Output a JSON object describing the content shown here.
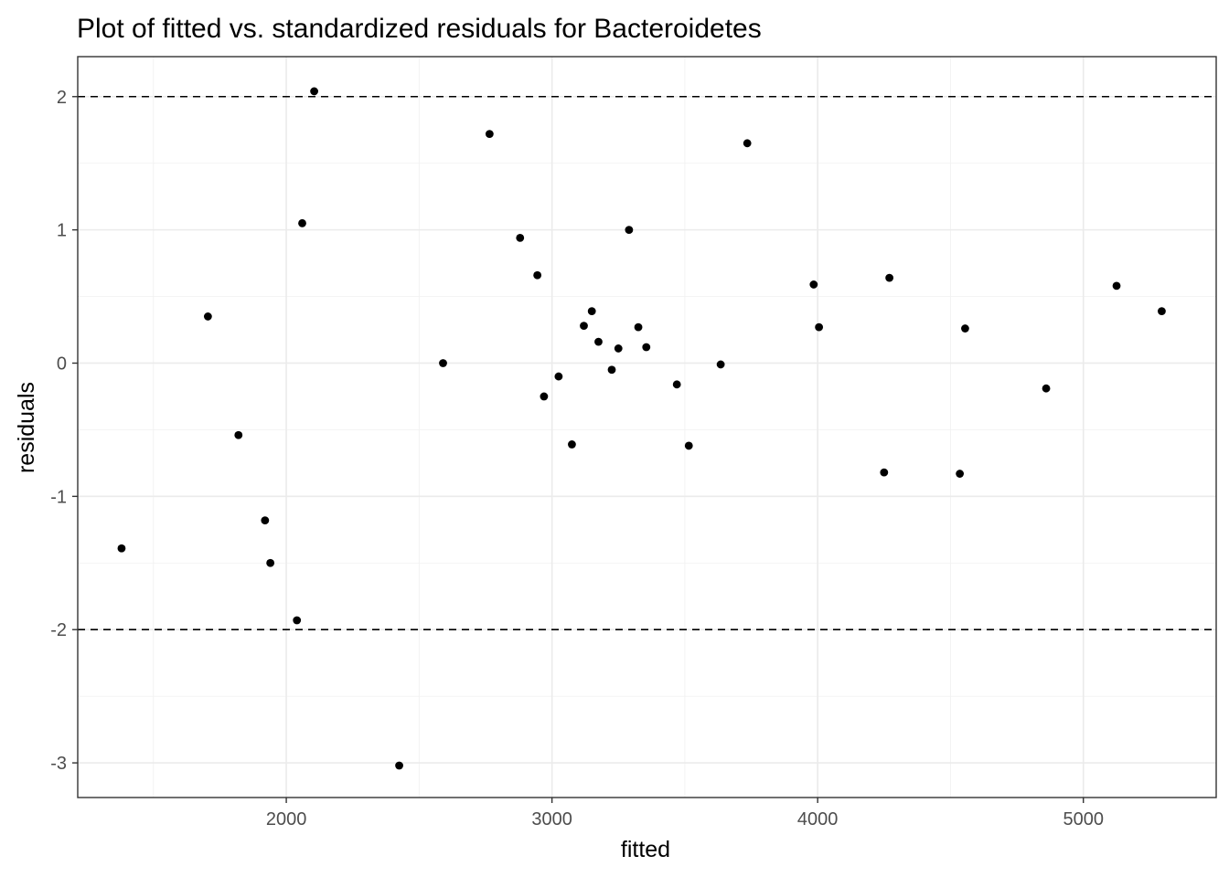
{
  "chart_data": {
    "type": "scatter",
    "title": "Plot of fitted vs. standardized residuals for Bacteroidetes",
    "xlabel": "fitted",
    "ylabel": "residuals",
    "xlim": [
      1215,
      5500
    ],
    "ylim": [
      -3.26,
      2.3
    ],
    "x_ticks": [
      2000,
      3000,
      4000,
      5000
    ],
    "x_tick_labels": [
      "2000",
      "3000",
      "4000",
      "5000"
    ],
    "y_ticks": [
      -3,
      -2,
      -1,
      0,
      1,
      2
    ],
    "y_tick_labels": [
      "-3",
      "-2",
      "-1",
      "0",
      "1",
      "2"
    ],
    "reference_lines_y": [
      2,
      -2
    ],
    "reference_line_style": "dashed",
    "grid": true,
    "legend": "none",
    "point_color": "#000000",
    "points": [
      {
        "x": 1380,
        "y": -1.39
      },
      {
        "x": 1705,
        "y": 0.35
      },
      {
        "x": 1820,
        "y": -0.54
      },
      {
        "x": 1920,
        "y": -1.18
      },
      {
        "x": 1940,
        "y": -1.5
      },
      {
        "x": 2040,
        "y": -1.93
      },
      {
        "x": 2060,
        "y": 1.05
      },
      {
        "x": 2105,
        "y": 2.04
      },
      {
        "x": 2425,
        "y": -3.02
      },
      {
        "x": 2590,
        "y": 0.0
      },
      {
        "x": 2765,
        "y": 1.72
      },
      {
        "x": 2880,
        "y": 0.94
      },
      {
        "x": 2945,
        "y": 0.66
      },
      {
        "x": 2970,
        "y": -0.25
      },
      {
        "x": 3025,
        "y": -0.1
      },
      {
        "x": 3075,
        "y": -0.61
      },
      {
        "x": 3120,
        "y": 0.28
      },
      {
        "x": 3150,
        "y": 0.39
      },
      {
        "x": 3175,
        "y": 0.16
      },
      {
        "x": 3225,
        "y": -0.05
      },
      {
        "x": 3250,
        "y": 0.11
      },
      {
        "x": 3290,
        "y": 1.0
      },
      {
        "x": 3325,
        "y": 0.27
      },
      {
        "x": 3355,
        "y": 0.12
      },
      {
        "x": 3470,
        "y": -0.16
      },
      {
        "x": 3515,
        "y": -0.62
      },
      {
        "x": 3635,
        "y": -0.01
      },
      {
        "x": 3735,
        "y": 1.65
      },
      {
        "x": 3985,
        "y": 0.59
      },
      {
        "x": 4005,
        "y": 0.27
      },
      {
        "x": 4250,
        "y": -0.82
      },
      {
        "x": 4270,
        "y": 0.64
      },
      {
        "x": 4535,
        "y": -0.83
      },
      {
        "x": 4555,
        "y": 0.26
      },
      {
        "x": 4860,
        "y": -0.19
      },
      {
        "x": 5125,
        "y": 0.58
      },
      {
        "x": 5295,
        "y": 0.39
      }
    ]
  }
}
